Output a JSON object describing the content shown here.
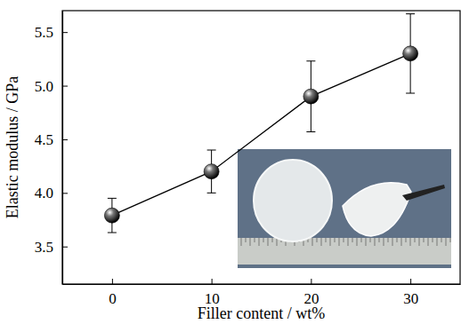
{
  "chart_data": {
    "type": "line",
    "x_label": "Filler content / wt%",
    "y_label": "Elastic modulus / GPa",
    "x": [
      0,
      10,
      20,
      30
    ],
    "values": [
      3.79,
      4.2,
      4.9,
      5.3
    ],
    "errors": [
      0.16,
      0.2,
      0.33,
      0.37
    ],
    "color": "#000000",
    "marker": "circle",
    "line_style": "solid",
    "xlim": [
      -5,
      35
    ],
    "xticks": [
      0,
      10,
      20,
      30
    ],
    "ylim": [
      3.15,
      5.7
    ],
    "yticks": [
      3.5,
      {
        "value": 4.0,
        "label": "4.0"
      },
      4.5,
      {
        "value": 5.0,
        "label": "5.0"
      },
      5.5
    ],
    "grid": false
  }
}
